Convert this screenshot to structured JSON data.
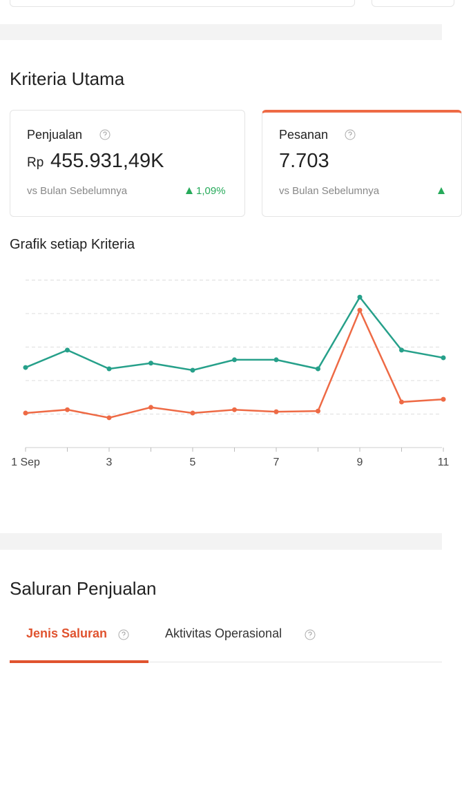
{
  "kriteria": {
    "title": "Kriteria Utama",
    "cards": [
      {
        "label": "Penjualan",
        "currency": "Rp",
        "value": "455.931,49K",
        "compare": "vs Bulan Sebelumnya",
        "change": "1,09%"
      },
      {
        "label": "Pesanan",
        "value": "7.703",
        "compare": "vs Bulan Sebelumnya"
      }
    ]
  },
  "chart_data": {
    "type": "line",
    "title": "Grafik setiap Kriteria",
    "categories": [
      "1 Sep",
      null,
      "3",
      null,
      "5",
      null,
      "7",
      null,
      "9",
      null,
      "11"
    ],
    "series": [
      {
        "color": "#26a08a",
        "values": [
          2.39,
          2.91,
          2.35,
          2.52,
          2.31,
          2.62,
          2.62,
          2.35,
          4.49,
          2.91,
          2.68
        ]
      },
      {
        "color": "#ee6a45",
        "values": [
          1.03,
          1.13,
          0.89,
          1.2,
          1.03,
          1.13,
          1.07,
          1.09,
          4.1,
          1.36,
          1.44
        ]
      }
    ],
    "ylim": [
      0,
      5
    ],
    "yticks": [
      1,
      2,
      3,
      4,
      5
    ],
    "grid": true
  },
  "saluran": {
    "title": "Saluran Penjualan",
    "tabs": [
      "Jenis Saluran",
      "Aktivitas Operasional"
    ]
  }
}
